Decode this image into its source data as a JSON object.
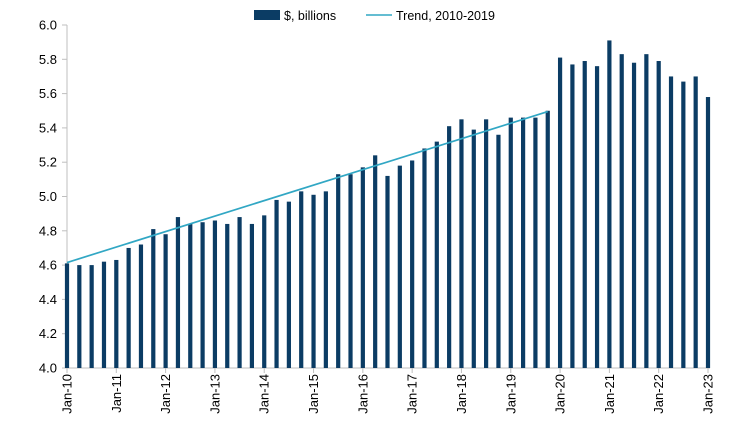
{
  "chart_data": {
    "type": "bar",
    "title": "",
    "xlabel": "",
    "ylabel": "",
    "ylim": [
      4.0,
      6.0
    ],
    "yticks": [
      "4.0",
      "4.2",
      "4.4",
      "4.6",
      "4.8",
      "5.0",
      "5.2",
      "5.4",
      "5.6",
      "5.8",
      "6.0"
    ],
    "xticks": [
      "Jan-10",
      "Jan-11",
      "Jan-12",
      "Jan-13",
      "Jan-14",
      "Jan-15",
      "Jan-16",
      "Jan-17",
      "Jan-18",
      "Jan-19",
      "Jan-20",
      "Jan-21",
      "Jan-22",
      "Jan-23"
    ],
    "grid": false,
    "legend_position": "top-center",
    "series": [
      {
        "name": "$, billions",
        "kind": "bar",
        "color": "#0b3c64",
        "values": [
          4.61,
          4.6,
          4.6,
          4.62,
          4.63,
          4.7,
          4.72,
          4.81,
          4.78,
          4.88,
          4.84,
          4.85,
          4.86,
          4.84,
          4.88,
          4.84,
          4.89,
          4.98,
          4.97,
          5.03,
          5.01,
          5.03,
          5.13,
          5.13,
          5.17,
          5.24,
          5.12,
          5.18,
          5.21,
          5.28,
          5.32,
          5.41,
          5.45,
          5.39,
          5.45,
          5.36,
          5.46,
          5.46,
          5.46,
          5.5,
          5.81,
          5.77,
          5.79,
          5.76,
          5.91,
          5.83,
          5.78,
          5.83,
          5.79,
          5.7,
          5.67,
          5.7,
          5.58
        ]
      },
      {
        "name": "Trend, 2010-2019",
        "kind": "line",
        "color": "#31a7c4",
        "start": 4.615,
        "end": 5.495
      }
    ]
  }
}
